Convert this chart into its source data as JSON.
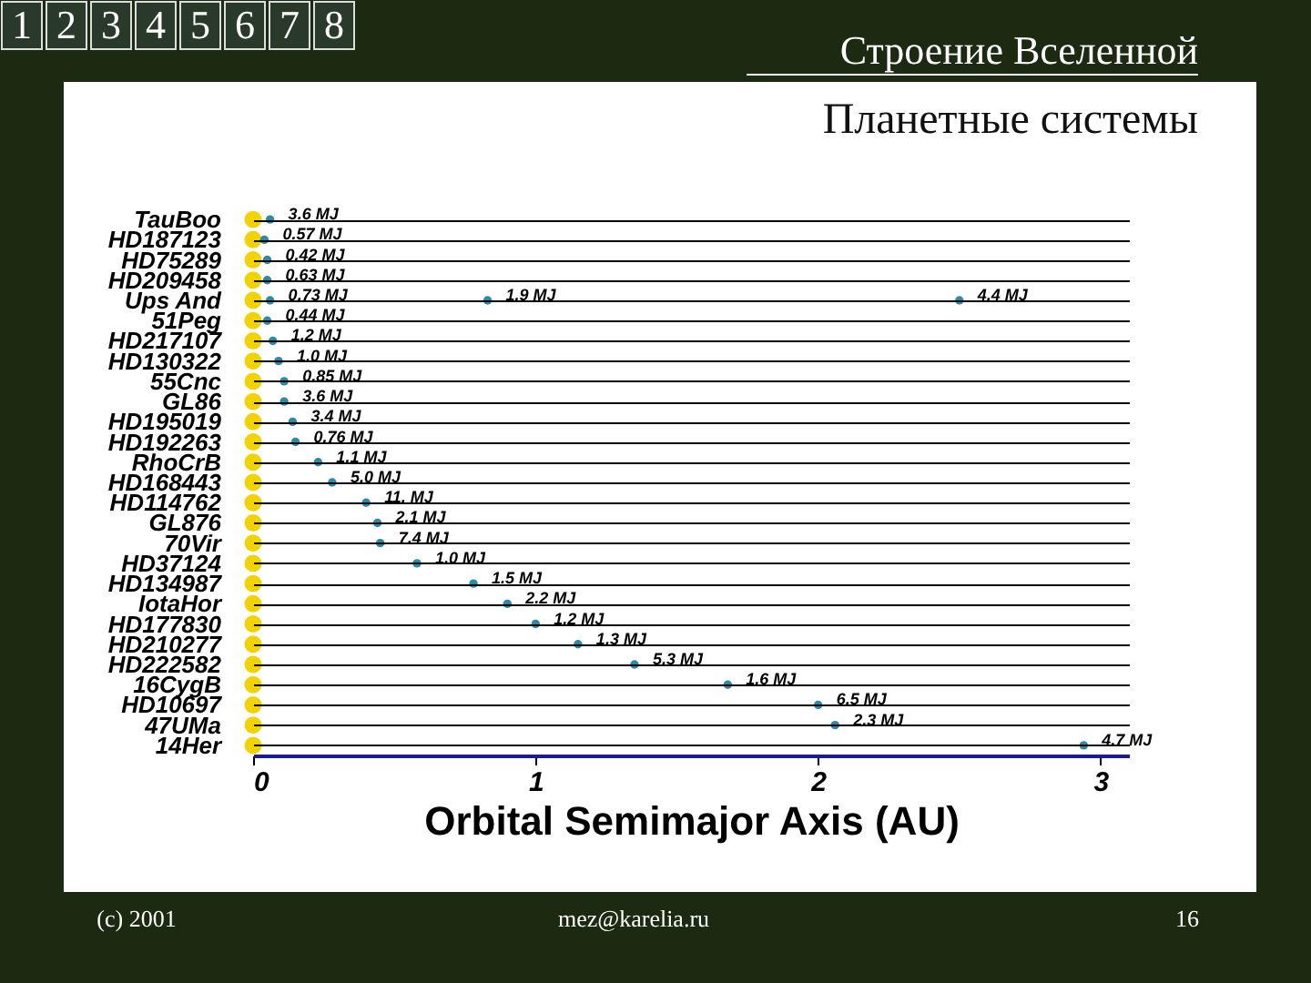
{
  "chart_data": {
    "type": "scatter",
    "orientation": "horizontal",
    "title": "Строение Вселенной",
    "subtitle": "Планетные системы",
    "xlabel": "Orbital Semimajor Axis (AU)",
    "categories": [
      "TauBoo",
      "HD187123",
      "HD75289",
      "HD209458",
      "Ups And",
      "51Peg",
      "HD217107",
      "HD130322",
      "55Cnc",
      "GL86",
      "HD195019",
      "HD192263",
      "RhoCrB",
      "HD168443",
      "HD114762",
      "GL876",
      "70Vir",
      "HD37124",
      "HD134987",
      "IotaHor",
      "HD177830",
      "HD210277",
      "HD222582",
      "16CygB",
      "HD10697",
      "47UMa",
      "14Her"
    ],
    "series": [
      {
        "color": "#f2d200",
        "values": [
          0,
          0,
          0,
          0,
          0,
          0,
          0,
          0,
          0,
          0,
          0,
          0,
          0,
          0,
          0,
          0,
          0,
          0,
          0,
          0,
          0,
          0,
          0,
          0,
          0,
          0,
          0
        ]
      },
      {
        "color": "#2f88a8",
        "values": [
          0.06,
          0.04,
          0.05,
          0.05,
          0.06,
          0.05,
          0.07,
          0.09,
          0.11,
          0.11,
          0.14,
          0.15,
          0.23,
          0.28,
          0.4,
          0.44,
          0.45,
          0.58,
          0.78,
          0.9,
          1.0,
          1.15,
          1.35,
          1.68,
          2.0,
          2.06,
          2.94
        ]
      },
      {
        "color": "#2f88a8",
        "values": [
          null,
          null,
          null,
          null,
          0.83,
          null,
          null,
          null,
          null,
          null,
          null,
          null,
          null,
          null,
          null,
          null,
          null,
          null,
          null,
          null,
          null,
          null,
          null,
          null,
          null,
          null,
          null
        ]
      },
      {
        "color": "#2f88a8",
        "values": [
          null,
          null,
          null,
          null,
          2.5,
          null,
          null,
          null,
          null,
          null,
          null,
          null,
          null,
          null,
          null,
          null,
          null,
          null,
          null,
          null,
          null,
          null,
          null,
          null,
          null,
          null,
          null
        ]
      }
    ],
    "marker": "circle",
    "xlim": [
      0,
      3.1
    ],
    "xticks": [
      0,
      1,
      2,
      3
    ],
    "grid": "y",
    "annotations": [
      "1",
      "2",
      "3",
      "4",
      "5",
      "6",
      "7",
      "8",
      "(c) 2001",
      "mez@karelia.ru",
      "16",
      {
        "text": "3.6 MJ",
        "x": 0.06,
        "y": "TauBoo"
      },
      {
        "text": "0.57 MJ",
        "x": 0.04,
        "y": "HD187123"
      },
      {
        "text": "0.42 MJ",
        "x": 0.05,
        "y": "HD75289"
      },
      {
        "text": "0.63 MJ",
        "x": 0.05,
        "y": "HD209458"
      },
      {
        "text": "0.73 MJ",
        "x": 0.06,
        "y": "Ups And"
      },
      {
        "text": "1.9 MJ",
        "x": 0.83,
        "y": "Ups And"
      },
      {
        "text": "4.4 MJ",
        "x": 2.5,
        "y": "Ups And"
      },
      {
        "text": "0.44 MJ",
        "x": 0.05,
        "y": "51Peg"
      },
      {
        "text": "1.2 MJ",
        "x": 0.07,
        "y": "HD217107"
      },
      {
        "text": "1.0 MJ",
        "x": 0.09,
        "y": "HD130322"
      },
      {
        "text": "0.85 MJ",
        "x": 0.11,
        "y": "55Cnc"
      },
      {
        "text": "3.6 MJ",
        "x": 0.11,
        "y": "GL86"
      },
      {
        "text": "3.4 MJ",
        "x": 0.14,
        "y": "HD195019"
      },
      {
        "text": "0.76 MJ",
        "x": 0.15,
        "y": "HD192263"
      },
      {
        "text": "1.1 MJ",
        "x": 0.23,
        "y": "RhoCrB"
      },
      {
        "text": "5.0 MJ",
        "x": 0.28,
        "y": "HD168443"
      },
      {
        "text": "11. MJ",
        "x": 0.4,
        "y": "HD114762"
      },
      {
        "text": "2.1 MJ",
        "x": 0.44,
        "y": "GL876"
      },
      {
        "text": "7.4 MJ",
        "x": 0.45,
        "y": "70Vir"
      },
      {
        "text": "1.0 MJ",
        "x": 0.58,
        "y": "HD37124"
      },
      {
        "text": "1.5 MJ",
        "x": 0.78,
        "y": "HD134987"
      },
      {
        "text": "2.2 MJ",
        "x": 0.9,
        "y": "IotaHor"
      },
      {
        "text": "1.2 MJ",
        "x": 1.0,
        "y": "HD177830"
      },
      {
        "text": "1.3 MJ",
        "x": 1.15,
        "y": "HD210277"
      },
      {
        "text": "5.3 MJ",
        "x": 1.35,
        "y": "HD222582"
      },
      {
        "text": "1.6 MJ",
        "x": 1.68,
        "y": "16CygB"
      },
      {
        "text": "6.5 MJ",
        "x": 2.0,
        "y": "HD10697"
      },
      {
        "text": "2.3 MJ",
        "x": 2.06,
        "y": "47UMa"
      },
      {
        "text": "4.7 MJ",
        "x": 2.94,
        "y": "14Her"
      }
    ]
  }
}
